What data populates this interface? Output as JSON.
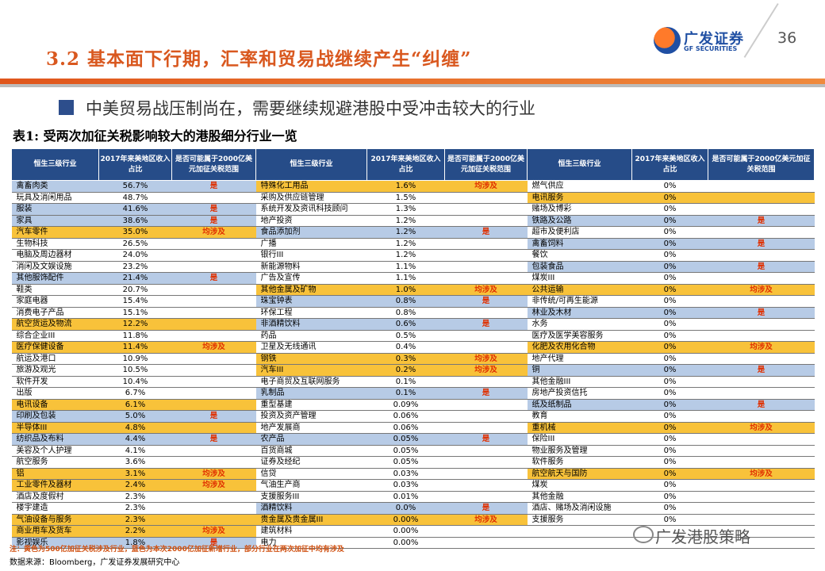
{
  "header": {
    "title": "3.2 基本面下行期，汇率和贸易战继续产生“纠缠”",
    "page": "36",
    "logo_cn": "广发证券",
    "logo_en": "GF SECURITIES"
  },
  "subtitle": "中美贸易战压制尚在，需要继续规避港股中受冲击较大的行业",
  "table_title": "表1: 受两次加征关税影响较大的港股细分行业一览",
  "columns": [
    "恒生三级行业",
    "2017年来美地区收入占比",
    "是否可能属于2000亿美元加征关税范围"
  ],
  "rows": [
    [
      [
        "禽畜肉类",
        "56.7%",
        "是",
        "b"
      ],
      [
        "特殊化工用品",
        "1.6%",
        "均涉及",
        "y"
      ],
      [
        "燃气供应",
        "0%",
        "",
        ""
      ]
    ],
    [
      [
        "玩具及消闲用品",
        "48.7%",
        "",
        ""
      ],
      [
        "采购及供应链管理",
        "1.5%",
        "",
        ""
      ],
      [
        "电讯服务",
        "0%",
        "",
        "y"
      ]
    ],
    [
      [
        "服装",
        "41.6%",
        "是",
        "b"
      ],
      [
        "系统开发及资讯科技顾问",
        "1.3%",
        "",
        ""
      ],
      [
        "赌场及博彩",
        "0%",
        "",
        ""
      ]
    ],
    [
      [
        "家具",
        "38.6%",
        "是",
        "b"
      ],
      [
        "地产投资",
        "1.2%",
        "",
        ""
      ],
      [
        "铁路及公路",
        "0%",
        "是",
        "b"
      ]
    ],
    [
      [
        "汽车零件",
        "35.0%",
        "均涉及",
        "y"
      ],
      [
        "食品添加剂",
        "1.2%",
        "是",
        "b"
      ],
      [
        "超市及便利店",
        "0%",
        "",
        ""
      ]
    ],
    [
      [
        "生物科技",
        "26.5%",
        "",
        ""
      ],
      [
        "广播",
        "1.2%",
        "",
        ""
      ],
      [
        "禽畜饲料",
        "0%",
        "是",
        "b"
      ]
    ],
    [
      [
        "电脑及周边器材",
        "24.0%",
        "",
        ""
      ],
      [
        "银行III",
        "1.2%",
        "",
        ""
      ],
      [
        "餐饮",
        "0%",
        "",
        ""
      ]
    ],
    [
      [
        "消闲及文娱设施",
        "23.2%",
        "",
        ""
      ],
      [
        "新能源物料",
        "1.1%",
        "",
        ""
      ],
      [
        "包装食品",
        "0%",
        "是",
        "b"
      ]
    ],
    [
      [
        "其他服饰配件",
        "21.4%",
        "是",
        "b"
      ],
      [
        "广告及宣传",
        "1.1%",
        "",
        ""
      ],
      [
        "煤炭III",
        "0%",
        "",
        ""
      ]
    ],
    [
      [
        "鞋类",
        "20.7%",
        "",
        ""
      ],
      [
        "其他金属及矿物",
        "1.0%",
        "均涉及",
        "y"
      ],
      [
        "公共运输",
        "0%",
        "均涉及",
        "y"
      ]
    ],
    [
      [
        "家庭电器",
        "15.4%",
        "",
        ""
      ],
      [
        "珠宝钟表",
        "0.8%",
        "是",
        "b"
      ],
      [
        "非传统/可再生能源",
        "0%",
        "",
        ""
      ]
    ],
    [
      [
        "消费电子产品",
        "15.1%",
        "",
        ""
      ],
      [
        "环保工程",
        "0.8%",
        "",
        ""
      ],
      [
        "林业及木材",
        "0%",
        "是",
        "b"
      ]
    ],
    [
      [
        "航空货运及物流",
        "12.2%",
        "",
        "y"
      ],
      [
        "非酒精饮料",
        "0.6%",
        "是",
        "b"
      ],
      [
        "水务",
        "0%",
        "",
        ""
      ]
    ],
    [
      [
        "综合企业III",
        "11.8%",
        "",
        ""
      ],
      [
        "药品",
        "0.5%",
        "",
        ""
      ],
      [
        "医疗及医学美容服务",
        "0%",
        "",
        ""
      ]
    ],
    [
      [
        "医疗保健设备",
        "11.4%",
        "均涉及",
        "y"
      ],
      [
        "卫星及无线通讯",
        "0.4%",
        "",
        ""
      ],
      [
        "化肥及农用化合物",
        "0%",
        "均涉及",
        "y"
      ]
    ],
    [
      [
        "航运及港口",
        "10.9%",
        "",
        ""
      ],
      [
        "钢铁",
        "0.3%",
        "均涉及",
        "y"
      ],
      [
        "地产代理",
        "0%",
        "",
        ""
      ]
    ],
    [
      [
        "旅游及观光",
        "10.5%",
        "",
        ""
      ],
      [
        "汽车III",
        "0.2%",
        "均涉及",
        "y"
      ],
      [
        "铜",
        "0%",
        "是",
        "b"
      ]
    ],
    [
      [
        "软件开发",
        "10.4%",
        "",
        ""
      ],
      [
        "电子商贸及互联网服务",
        "0.1%",
        "",
        ""
      ],
      [
        "其他金融III",
        "0%",
        "",
        ""
      ]
    ],
    [
      [
        "出版",
        "6.7%",
        "",
        ""
      ],
      [
        "乳制品",
        "0.1%",
        "是",
        "b"
      ],
      [
        "房地产投资信托",
        "0%",
        "",
        ""
      ]
    ],
    [
      [
        "电讯设备",
        "6.1%",
        "",
        "y"
      ],
      [
        "重型基建",
        "0.09%",
        "",
        ""
      ],
      [
        "纸及纸制品",
        "0%",
        "是",
        "b"
      ]
    ],
    [
      [
        "印刷及包装",
        "5.0%",
        "是",
        "b"
      ],
      [
        "投资及资产管理",
        "0.06%",
        "",
        ""
      ],
      [
        "教育",
        "0%",
        "",
        ""
      ]
    ],
    [
      [
        "半导体III",
        "4.8%",
        "",
        "y"
      ],
      [
        "地产发展商",
        "0.06%",
        "",
        ""
      ],
      [
        "重机械",
        "0%",
        "均涉及",
        "y"
      ]
    ],
    [
      [
        "纺织品及布料",
        "4.4%",
        "是",
        "b"
      ],
      [
        "农产品",
        "0.05%",
        "是",
        "b"
      ],
      [
        "保险III",
        "0%",
        "",
        ""
      ]
    ],
    [
      [
        "美容及个人护理",
        "4.1%",
        "",
        ""
      ],
      [
        "百货商城",
        "0.05%",
        "",
        ""
      ],
      [
        "物业服务及管理",
        "0%",
        "",
        ""
      ]
    ],
    [
      [
        "航空服务",
        "3.6%",
        "",
        ""
      ],
      [
        "证券及经纪",
        "0.05%",
        "",
        ""
      ],
      [
        "软件服务",
        "0%",
        "",
        ""
      ]
    ],
    [
      [
        "铝",
        "3.1%",
        "均涉及",
        "y"
      ],
      [
        "信贷",
        "0.03%",
        "",
        ""
      ],
      [
        "航空航天与国防",
        "0%",
        "均涉及",
        "y"
      ]
    ],
    [
      [
        "工业零件及器材",
        "2.4%",
        "均涉及",
        "y"
      ],
      [
        "气油生产商",
        "0.03%",
        "",
        ""
      ],
      [
        "煤炭",
        "0%",
        "",
        ""
      ]
    ],
    [
      [
        "酒店及度假村",
        "2.3%",
        "",
        ""
      ],
      [
        "支援服务III",
        "0.01%",
        "",
        ""
      ],
      [
        "其他金融",
        "0%",
        "",
        ""
      ]
    ],
    [
      [
        "楼宇建造",
        "2.3%",
        "",
        ""
      ],
      [
        "酒精饮料",
        "0.0%",
        "是",
        "b"
      ],
      [
        "酒店、赌场及消闲设施",
        "0%",
        "",
        ""
      ]
    ],
    [
      [
        "气油设备与服务",
        "2.3%",
        "",
        "y"
      ],
      [
        "贵金属及贵金属III",
        "0.00%",
        "均涉及",
        "y"
      ],
      [
        "支援服务",
        "0%",
        "",
        ""
      ]
    ],
    [
      [
        "商业用车及货车",
        "2.2%",
        "均涉及",
        "y"
      ],
      [
        "建筑材料",
        "0.00%",
        "",
        ""
      ],
      [
        "",
        "",
        "",
        ""
      ]
    ],
    [
      [
        "影视娱乐",
        "1.8%",
        "是",
        "b"
      ],
      [
        "电力",
        "0.00%",
        "",
        ""
      ],
      [
        "",
        "",
        "",
        ""
      ]
    ]
  ],
  "footnote": "注：黄色为500亿加征关税涉及行业，蓝色为本次2000亿加征新增行业，部分行业在两次加征中均有涉及",
  "source": "数据来源：Bloomberg，广发证券发展研究中心",
  "watermark": "广发港股策略"
}
